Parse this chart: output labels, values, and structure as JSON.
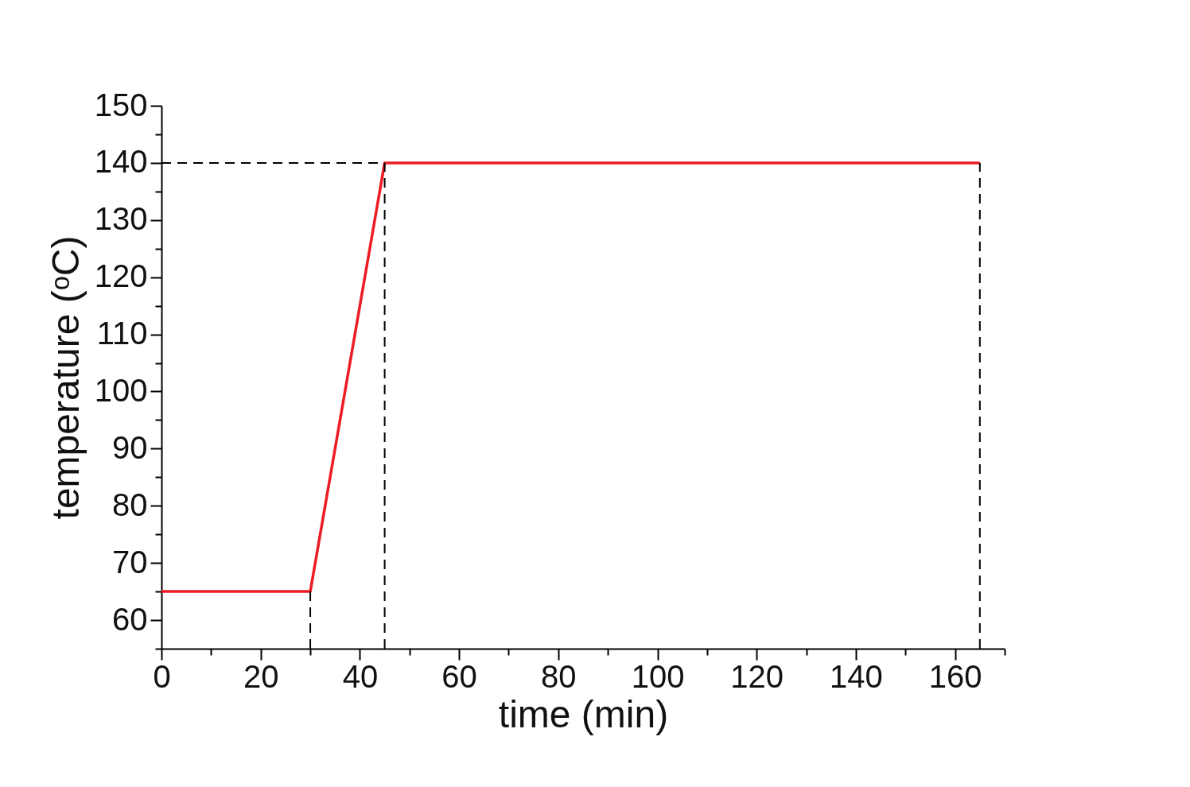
{
  "chart_data": {
    "type": "line",
    "xlabel": "time (min)",
    "ylabel": "temperature (ᵒC)",
    "xlim": [
      0,
      170
    ],
    "ylim": [
      55,
      150
    ],
    "xticks": [
      0,
      {
        "value": 10,
        "label": null
      },
      20,
      {
        "value": 30,
        "label": null
      },
      40,
      {
        "value": 50,
        "label": null
      },
      60,
      {
        "value": 70,
        "label": null
      },
      80,
      {
        "value": 90,
        "label": null
      },
      100,
      {
        "value": 110,
        "label": null
      },
      120,
      {
        "value": 130,
        "label": null
      },
      140,
      {
        "value": 150,
        "label": null
      },
      160,
      {
        "value": 170,
        "label": null
      }
    ],
    "yticks": [
      {
        "value": 55,
        "label": null
      },
      60,
      {
        "value": 65,
        "label": null
      },
      70,
      {
        "value": 75,
        "label": null
      },
      80,
      {
        "value": 85,
        "label": null
      },
      90,
      {
        "value": 95,
        "label": null
      },
      100,
      {
        "value": 105,
        "label": null
      },
      110,
      {
        "value": 115,
        "label": null
      },
      120,
      {
        "value": 125,
        "label": null
      },
      130,
      {
        "value": 135,
        "label": null
      },
      140,
      {
        "value": 145,
        "label": null
      },
      150
    ],
    "grid": false,
    "marker": "none",
    "series": [
      {
        "color": "#ed1c24",
        "line_style": "solid",
        "x": [
          0,
          30,
          45,
          165
        ],
        "values": [
          65,
          65,
          140,
          140
        ]
      },
      {
        "color": "#000000",
        "line_style": "dashed",
        "x": [
          0,
          45
        ],
        "values": [
          140,
          140
        ]
      },
      {
        "color": "#000000",
        "line_style": "dashed",
        "x": [
          30,
          30
        ],
        "values": [
          55,
          65
        ]
      },
      {
        "color": "#000000",
        "line_style": "dashed",
        "x": [
          45,
          45
        ],
        "values": [
          55,
          140
        ]
      },
      {
        "color": "#000000",
        "line_style": "dashed",
        "x": [
          165,
          165
        ],
        "values": [
          55,
          140
        ]
      }
    ]
  }
}
